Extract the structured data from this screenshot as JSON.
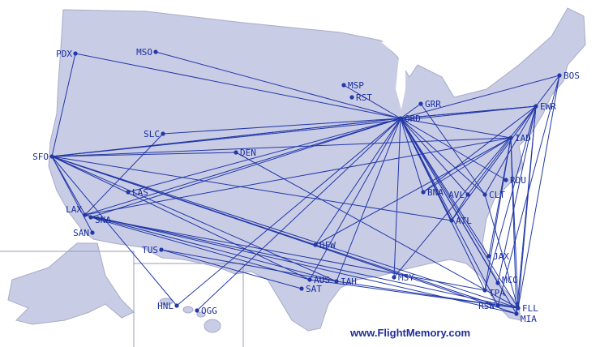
{
  "credit": "www.FlightMemory.com",
  "colors": {
    "land": "#c9cce5",
    "route": "#2238a8",
    "label": "#1a2e9e",
    "border": "#9a9db8"
  },
  "airports": [
    "PDX",
    "MSO",
    "MSP",
    "RST",
    "GRR",
    "ORD",
    "BOS",
    "EWR",
    "IAD",
    "RDU",
    "AVL",
    "CLT",
    "BNA",
    "ATL",
    "SLC",
    "DEN",
    "SFO",
    "LAS",
    "LAX",
    "SNA",
    "SAN",
    "TUS",
    "DFW",
    "AUS",
    "SAT",
    "IAH",
    "MSY",
    "JAX",
    "MCO",
    "TPA",
    "RSW",
    "FLL",
    "MIA",
    "HNL",
    "OGG"
  ],
  "routes": [
    [
      "ORD",
      "PDX"
    ],
    [
      "ORD",
      "MSO"
    ],
    [
      "ORD",
      "SLC"
    ],
    [
      "ORD",
      "SFO"
    ],
    [
      "ORD",
      "SFO"
    ],
    [
      "ORD",
      "LAX"
    ],
    [
      "ORD",
      "SNA"
    ],
    [
      "ORD",
      "LAS"
    ],
    [
      "ORD",
      "BOS"
    ],
    [
      "ORD",
      "EWR"
    ],
    [
      "ORD",
      "EWR"
    ],
    [
      "ORD",
      "IAD"
    ],
    [
      "ORD",
      "RDU"
    ],
    [
      "ORD",
      "CLT"
    ],
    [
      "ORD",
      "AVL"
    ],
    [
      "ORD",
      "BNA"
    ],
    [
      "ORD",
      "ATL"
    ],
    [
      "ORD",
      "ATL"
    ],
    [
      "ORD",
      "MIA"
    ],
    [
      "ORD",
      "FLL"
    ],
    [
      "ORD",
      "TPA"
    ],
    [
      "ORD",
      "MCO"
    ],
    [
      "ORD",
      "RSW"
    ],
    [
      "ORD",
      "JAX"
    ],
    [
      "ORD",
      "IAH"
    ],
    [
      "ORD",
      "MSY"
    ],
    [
      "ORD",
      "AUS"
    ],
    [
      "ORD",
      "HNL"
    ],
    [
      "ORD",
      "OGG"
    ],
    [
      "ORD",
      "DFW"
    ],
    [
      "ORD",
      "GRR"
    ],
    [
      "ORD",
      "MSP"
    ],
    [
      "SFO",
      "EWR"
    ],
    [
      "SFO",
      "IAD"
    ],
    [
      "SFO",
      "FLL"
    ],
    [
      "SFO",
      "MIA"
    ],
    [
      "SFO",
      "HNL"
    ],
    [
      "SFO",
      "IAH"
    ],
    [
      "SFO",
      "DFW"
    ],
    [
      "SFO",
      "AUS"
    ],
    [
      "SFO",
      "LAX"
    ],
    [
      "SFO",
      "SAN"
    ],
    [
      "SFO",
      "DEN"
    ],
    [
      "SFO",
      "ATL"
    ],
    [
      "LAX",
      "IAD"
    ],
    [
      "LAX",
      "MIA"
    ],
    [
      "LAX",
      "FLL"
    ],
    [
      "LAX",
      "IAH"
    ],
    [
      "LAX",
      "SLC"
    ],
    [
      "SNA",
      "TPA"
    ],
    [
      "SNA",
      "AUS"
    ],
    [
      "DEN",
      "FLL"
    ],
    [
      "DFW",
      "RSW"
    ],
    [
      "DFW",
      "IAD"
    ],
    [
      "IAH",
      "FLL"
    ],
    [
      "AUS",
      "FLL"
    ],
    [
      "MSY",
      "EWR"
    ],
    [
      "EWR",
      "BOS"
    ],
    [
      "EWR",
      "FLL"
    ],
    [
      "EWR",
      "MIA"
    ],
    [
      "EWR",
      "TPA"
    ],
    [
      "EWR",
      "MCO"
    ],
    [
      "EWR",
      "ATL"
    ],
    [
      "EWR",
      "CLT"
    ],
    [
      "EWR",
      "BNA"
    ],
    [
      "BOS",
      "FLL"
    ],
    [
      "BOS",
      "RSW"
    ],
    [
      "IAD",
      "FLL"
    ],
    [
      "IAD",
      "MIA"
    ],
    [
      "IAD",
      "TPA"
    ],
    [
      "IAD",
      "AVL"
    ],
    [
      "IAD",
      "BNA"
    ],
    [
      "IAD",
      "JAX"
    ],
    [
      "GRR",
      "CLT"
    ],
    [
      "CLT",
      "FLL"
    ],
    [
      "ATL",
      "AVL"
    ],
    [
      "PDX",
      "SFO"
    ],
    [
      "TUS",
      "SAT"
    ],
    [
      "TUS",
      "IAH"
    ]
  ]
}
